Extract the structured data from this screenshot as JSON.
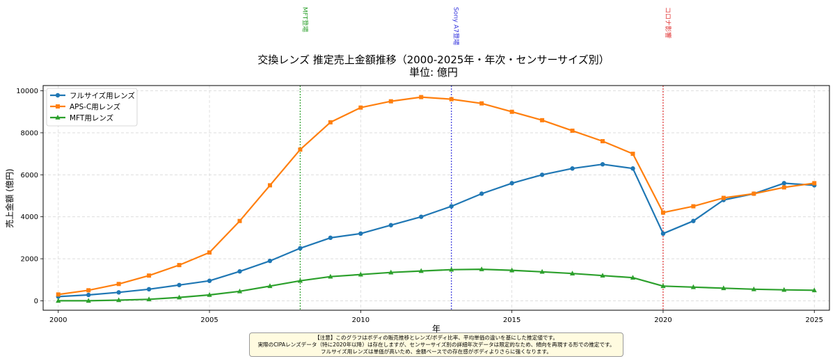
{
  "chart_data": {
    "type": "line",
    "title": "交換レンズ 推定売上金額推移（2000-2025年・年次・センサーサイズ別）",
    "subtitle": "単位: 億円",
    "xlabel": "年",
    "ylabel": "売上金額 (億円)",
    "xlim": [
      1999.5,
      2025.5
    ],
    "ylim": [
      -450,
      10250
    ],
    "xticks": [
      2000,
      2005,
      2010,
      2015,
      2020,
      2025
    ],
    "yticks": [
      0,
      2000,
      4000,
      6000,
      8000,
      10000
    ],
    "grid": true,
    "legend_position": "top-left",
    "x": [
      2000,
      2001,
      2002,
      2003,
      2004,
      2005,
      2006,
      2007,
      2008,
      2009,
      2010,
      2011,
      2012,
      2013,
      2014,
      2015,
      2016,
      2017,
      2018,
      2019,
      2020,
      2021,
      2022,
      2023,
      2024,
      2025
    ],
    "series": [
      {
        "name": "フルサイズ用レンズ",
        "color": "#1f77b4",
        "marker": "circle",
        "values": [
          200,
          280,
          400,
          550,
          750,
          950,
          1400,
          1900,
          2500,
          3000,
          3200,
          3600,
          4000,
          4500,
          5100,
          5600,
          6000,
          6300,
          6500,
          6300,
          3200,
          3800,
          4800,
          5100,
          5600,
          5500
        ]
      },
      {
        "name": "APS-C用レンズ",
        "color": "#ff7f0e",
        "marker": "square",
        "values": [
          300,
          500,
          800,
          1200,
          1700,
          2300,
          3800,
          5500,
          7200,
          8500,
          9200,
          9500,
          9700,
          9600,
          9400,
          9000,
          8600,
          8100,
          7600,
          7000,
          4200,
          4500,
          4900,
          5100,
          5400,
          5600
        ]
      },
      {
        "name": "MFT用レンズ",
        "color": "#2ca02c",
        "marker": "triangle",
        "values": [
          0,
          0,
          30,
          70,
          160,
          280,
          450,
          700,
          950,
          1150,
          1250,
          1350,
          1420,
          1480,
          1500,
          1450,
          1380,
          1300,
          1200,
          1100,
          700,
          650,
          600,
          550,
          520,
          500
        ]
      }
    ],
    "annotations": [
      {
        "x": 2008,
        "label": "MFT登場",
        "color": "#2ca02c"
      },
      {
        "x": 2013,
        "label": "Sony A7登場",
        "color": "#3333dd"
      },
      {
        "x": 2020,
        "label": "コロナ影響",
        "color": "#e03030"
      }
    ]
  },
  "note": {
    "lines": [
      "【注意】このグラフはボディの販売推移とレンズ/ボディ比率、平均単価の違いを基にした推定値です。",
      "実際のCIPAレンズデータ（特に2020年以降）は存在しますが、センサーサイズ別の詳細年次データは限定的なため、傾向を再現する形での推定です。",
      "フルサイズ用レンズは単価が高いため、金額ベースでの存在感がボディよりさらに強くなります。"
    ]
  }
}
